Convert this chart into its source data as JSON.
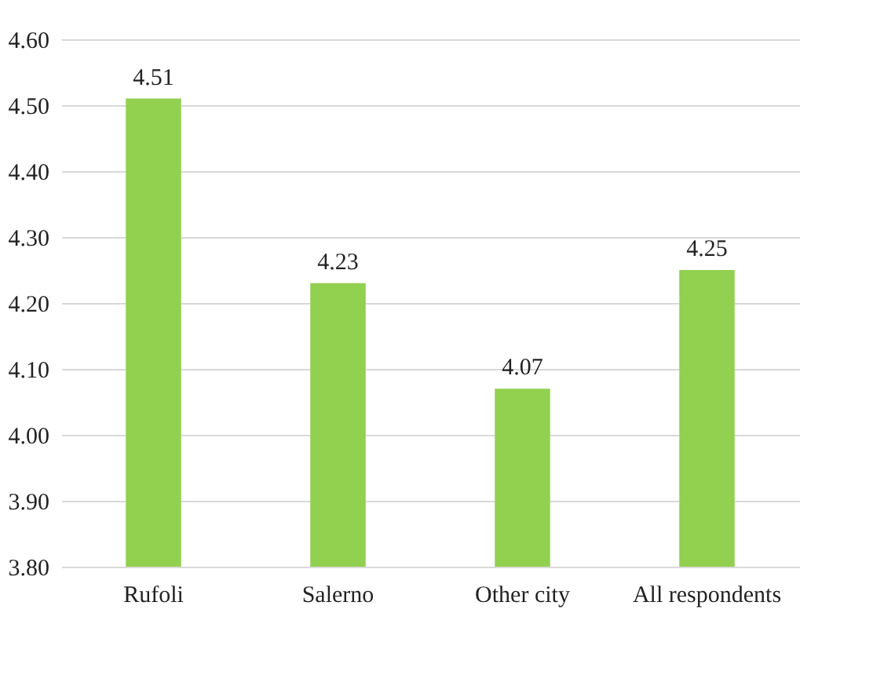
{
  "chart_data": {
    "type": "bar",
    "categories": [
      "Rufoli",
      "Salerno",
      "Other city",
      "All respondents"
    ],
    "values": [
      4.51,
      4.23,
      4.07,
      4.25
    ],
    "color": "#92d050",
    "data_labels": true,
    "grid": "y",
    "ylim": [
      3.8,
      4.6
    ],
    "yticks": [
      {
        "value": 3.8,
        "label": "3.80"
      },
      {
        "value": 3.9,
        "label": "3.90"
      },
      {
        "value": 4.0,
        "label": "4.00"
      },
      {
        "value": 4.1,
        "label": "4.10"
      },
      {
        "value": 4.2,
        "label": "4.20"
      },
      {
        "value": 4.3,
        "label": "4.30"
      },
      {
        "value": 4.4,
        "label": "4.40"
      },
      {
        "value": 4.5,
        "label": "4.50"
      },
      {
        "value": 4.6,
        "label": "4.60"
      }
    ]
  }
}
